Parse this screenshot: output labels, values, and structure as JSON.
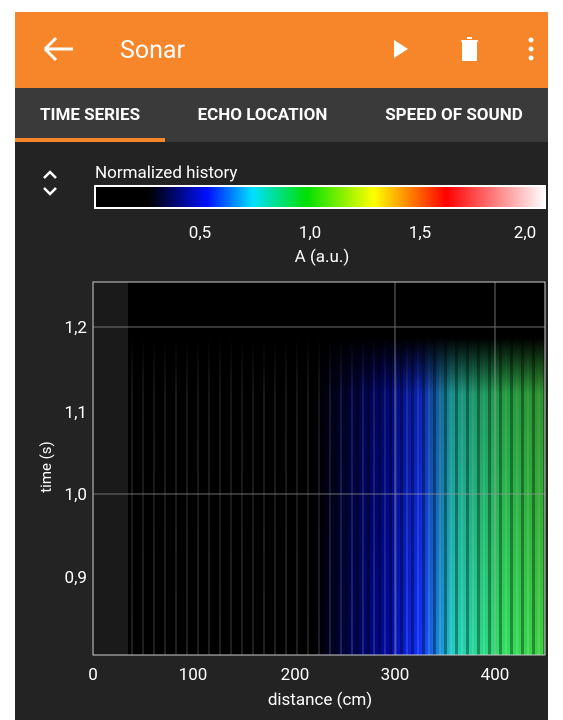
{
  "app_bar": {
    "title": "Sonar"
  },
  "tabs": [
    "TIME SERIES",
    "ECHO LOCATION",
    "SPEED OF SOUND"
  ],
  "panel": {
    "title": "Normalized history",
    "colorbar": {
      "ticks": [
        "0,5",
        "1,0",
        "1,5",
        "2,0"
      ],
      "label": "A (a.u.)"
    },
    "plot": {
      "y_label": "time (s)",
      "y_ticks": [
        "1,2",
        "1,1",
        "1,0",
        "0,9"
      ],
      "x_label": "distance (cm)",
      "x_ticks": [
        "0",
        "100",
        "200",
        "300",
        "400"
      ]
    }
  }
}
